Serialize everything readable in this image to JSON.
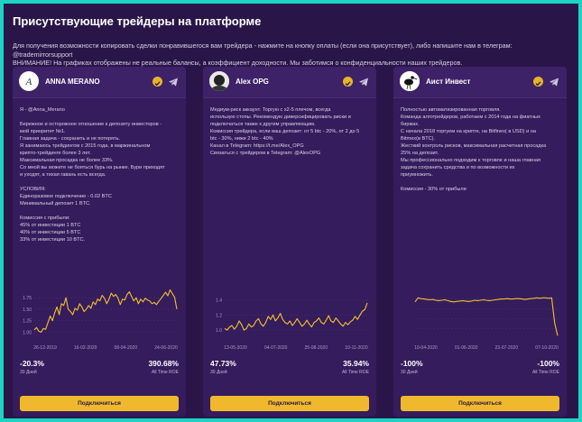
{
  "page": {
    "title": "Присутствующие трейдеры на платформе",
    "info_line1": "Для получения возможности копировать сделки понравившегося вам трейдера - нажмите на кнопку оплаты (если она присутствует), либо напишите нам в телеграм: @trademirrorsupport",
    "info_line2": "ВНИМАНИЕ! На графиках отображены не реальные балансы, а коэффициент доходности. Мы заботимся о конфиденциальности наших трейдеров."
  },
  "colors": {
    "accent": "#f0b92d",
    "card": "#351c5c",
    "line": "#f2c230"
  },
  "traders": [
    {
      "name": "ANNA MERANO",
      "avatar_text": "A",
      "verified_icon": "verified-check-icon",
      "telegram_icon": "telegram-icon",
      "description": [
        "Я - @Anna_Merano",
        "",
        "Бережное и осторожное отношение к депозиту инвесторов -",
        "мой приоритет №1.",
        "Главная задача - сохранить и не потерять.",
        "Я занимаюсь трейдингом с 2015 года, в маржинальном",
        "крипто-трейдинге более 3 лет.",
        "Максимальная просадка не более 33%.",
        "Со мной вы можете не бояться бурь на рынке. Бури приходят",
        "и уходят, а тихая гавань есть всегда.",
        "",
        "УСЛОВИЯ:",
        "Единоразовое подключение - 0.02 BTC",
        "Минимальный депозит 1 BTC.",
        "",
        "Комиссия с прибыли:",
        "45% от инвестиции 1 BTC",
        "40% от инвестиции 5 BTC",
        "33% от инвестиции 10 BTC."
      ],
      "chart": {
        "type": "line",
        "x_ticks": [
          "26-12-2019",
          "16-02-2020",
          "08-04-2020",
          "24-06-2020"
        ],
        "y_ticks": [
          "1.75",
          "1.50",
          "1.25",
          "1.00"
        ],
        "y_range": [
          0.85,
          1.95
        ],
        "values": [
          1.05,
          1.1,
          1.02,
          1.0,
          1.08,
          1.06,
          1.2,
          1.35,
          1.25,
          1.42,
          1.55,
          1.38,
          1.62,
          1.58,
          1.75,
          1.5,
          1.45,
          1.38,
          1.52,
          1.48,
          1.62,
          1.55,
          1.45,
          1.5,
          1.58,
          1.52,
          1.66,
          1.6,
          1.72,
          1.68,
          1.8,
          1.74,
          1.62,
          1.72,
          1.85,
          1.78,
          1.82,
          1.74,
          1.6,
          1.72,
          1.7,
          1.82,
          1.88,
          1.78,
          1.68,
          1.75,
          1.62,
          1.72,
          1.66,
          1.74,
          1.7,
          1.68,
          1.62,
          1.65,
          1.6,
          1.67,
          1.73,
          1.8,
          1.87,
          1.79,
          1.92,
          1.84,
          1.76,
          1.5
        ]
      },
      "stat_left": "-20.3%",
      "stat_left_label": "30 Дней",
      "stat_right": "390.68%",
      "stat_right_label": "All Time ROE",
      "button": "Подключиться"
    },
    {
      "name": "Alex OPG",
      "avatar_text": "",
      "verified_icon": "verified-check-icon",
      "telegram_icon": "telegram-icon",
      "description": [
        "Медиум-риск аккаунт. Торгую с x2-5 плечом, всегда",
        "использую стопы. Рекомендую диверсифицировать риски и",
        "подключаться также к другим управляющим.",
        "Комиссия трейдера, если ваш депозит: от 5 btc - 20%, от 2 до 5",
        "btc - 30%, ниже 2 btc - 40%",
        "Канал в Telegram: https://t.me/Alex_OPG",
        "Связаться с трейдером в Telegram: @AlexOPG"
      ],
      "chart": {
        "type": "line",
        "x_ticks": [
          "13-05-2020",
          "04-07-2020",
          "25-08-2020",
          "10-11-2020"
        ],
        "y_ticks": [
          "1.4",
          "1.2",
          "1.0"
        ],
        "y_range": [
          0.88,
          1.55
        ],
        "values": [
          1.02,
          1.0,
          1.04,
          1.06,
          1.01,
          1.05,
          1.12,
          1.07,
          1.0,
          1.02,
          1.08,
          1.04,
          1.06,
          1.12,
          1.15,
          1.08,
          1.05,
          1.1,
          1.18,
          1.14,
          1.2,
          1.12,
          1.16,
          1.22,
          1.14,
          1.1,
          1.08,
          1.12,
          1.06,
          1.1,
          1.15,
          1.1,
          1.05,
          1.08,
          1.13,
          1.08,
          1.04,
          1.1,
          1.12,
          1.16,
          1.1,
          1.08,
          1.13,
          1.19,
          1.12,
          1.1,
          1.16,
          1.12,
          1.08,
          1.05,
          1.1,
          1.07,
          1.11,
          1.13,
          1.18,
          1.14,
          1.2,
          1.25,
          1.27,
          1.36
        ]
      },
      "stat_left": "47.73%",
      "stat_left_label": "30 Дней",
      "stat_right": "35.94%",
      "stat_right_label": "All Time ROE",
      "button": "Подключиться"
    },
    {
      "name": "Аист Инвест",
      "avatar_text": "",
      "verified_icon": "verified-check-icon",
      "telegram_icon": "telegram-icon",
      "description": [
        "Полностью автоматизированная торговля.",
        "Команда алготрейдеров, работаем с 2014 года на фиатных",
        "биржах.",
        "С начала 2018 торгуем на крипте, на Bitfinex( в USD) и на",
        "Bitmex(в BTC).",
        "Жесткий контроль рисков, максимальная расчетная просадка",
        "25% на депозит.",
        "Мы профессионально подходим к торговле и наша главная",
        "задача сохранить средства и по возможности их",
        "приумножить.",
        "",
        "Комиссия - 30% от прибыли"
      ],
      "chart": {
        "type": "line",
        "x_ticks": [
          "10-04-2020",
          "01-06-2020",
          "23-07-2020",
          "07-10-2020"
        ],
        "y_ticks": [],
        "y_range": [
          0,
          1.25
        ],
        "values": [
          0.92,
          1.02,
          1.0,
          0.99,
          0.98,
          0.97,
          0.98,
          0.96,
          0.95,
          0.96,
          0.97,
          0.95,
          0.93,
          0.92,
          0.93,
          0.94,
          0.95,
          0.94,
          0.93,
          0.94,
          0.96,
          0.95,
          0.96,
          0.97,
          0.96,
          0.95,
          0.96,
          0.97,
          0.98,
          0.99,
          0.99,
          1.0,
          0.99,
          0.99,
          1.0,
          1.0,
          0.99,
          0.98,
          0.99,
          1.0,
          1.01,
          1.02,
          1.01,
          1.02,
          1.02,
          1.01,
          1.02,
          0.4,
          0.08
        ]
      },
      "stat_left": "-100%",
      "stat_left_label": "30 Дней",
      "stat_right": "-100%",
      "stat_right_label": "All Time ROE",
      "button": "Подключиться"
    }
  ]
}
